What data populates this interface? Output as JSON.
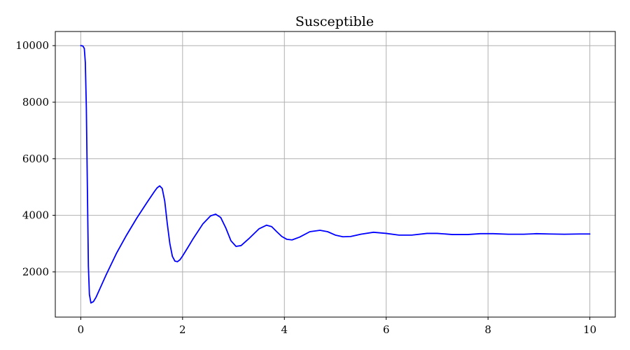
{
  "chart_data": {
    "type": "line",
    "title": "Susceptible",
    "xlabel": "",
    "ylabel": "",
    "xlim": [
      -0.5,
      10.5
    ],
    "ylim": [
      400,
      10500
    ],
    "xticks": [
      0,
      2,
      4,
      6,
      8,
      10
    ],
    "yticks": [
      2000,
      4000,
      6000,
      8000,
      10000
    ],
    "grid": true,
    "line_color": "#0000ff",
    "series": [
      {
        "x": [
          0.0,
          0.04,
          0.07,
          0.09,
          0.11,
          0.13,
          0.15,
          0.17,
          0.2,
          0.25,
          0.3,
          0.4,
          0.5,
          0.7,
          0.9,
          1.1,
          1.3,
          1.45,
          1.5,
          1.55,
          1.6,
          1.65,
          1.7,
          1.75,
          1.8,
          1.85,
          1.9,
          1.95,
          2.0,
          2.1,
          2.2,
          2.4,
          2.55,
          2.65,
          2.75,
          2.85,
          2.95,
          3.05,
          3.15,
          3.3,
          3.5,
          3.65,
          3.75,
          3.85,
          3.95,
          4.05,
          4.15,
          4.3,
          4.5,
          4.7,
          4.85,
          5.0,
          5.15,
          5.3,
          5.5,
          5.75,
          6.0,
          6.25,
          6.5,
          6.8,
          7.0,
          7.3,
          7.6,
          7.85,
          8.1,
          8.4,
          8.7,
          8.95,
          9.2,
          9.5,
          9.8,
          10.0
        ],
        "y": [
          10000,
          9990,
          9900,
          9400,
          7800,
          5000,
          2200,
          1200,
          900,
          950,
          1100,
          1500,
          1900,
          2650,
          3300,
          3900,
          4450,
          4850,
          4970,
          5040,
          4950,
          4500,
          3700,
          3000,
          2550,
          2380,
          2360,
          2430,
          2560,
          2850,
          3150,
          3700,
          3980,
          4040,
          3920,
          3550,
          3100,
          2900,
          2930,
          3170,
          3520,
          3650,
          3600,
          3420,
          3250,
          3150,
          3130,
          3230,
          3420,
          3470,
          3420,
          3300,
          3240,
          3250,
          3330,
          3400,
          3360,
          3300,
          3300,
          3360,
          3360,
          3320,
          3320,
          3350,
          3350,
          3330,
          3330,
          3350,
          3340,
          3330,
          3340,
          3340
        ]
      }
    ]
  }
}
